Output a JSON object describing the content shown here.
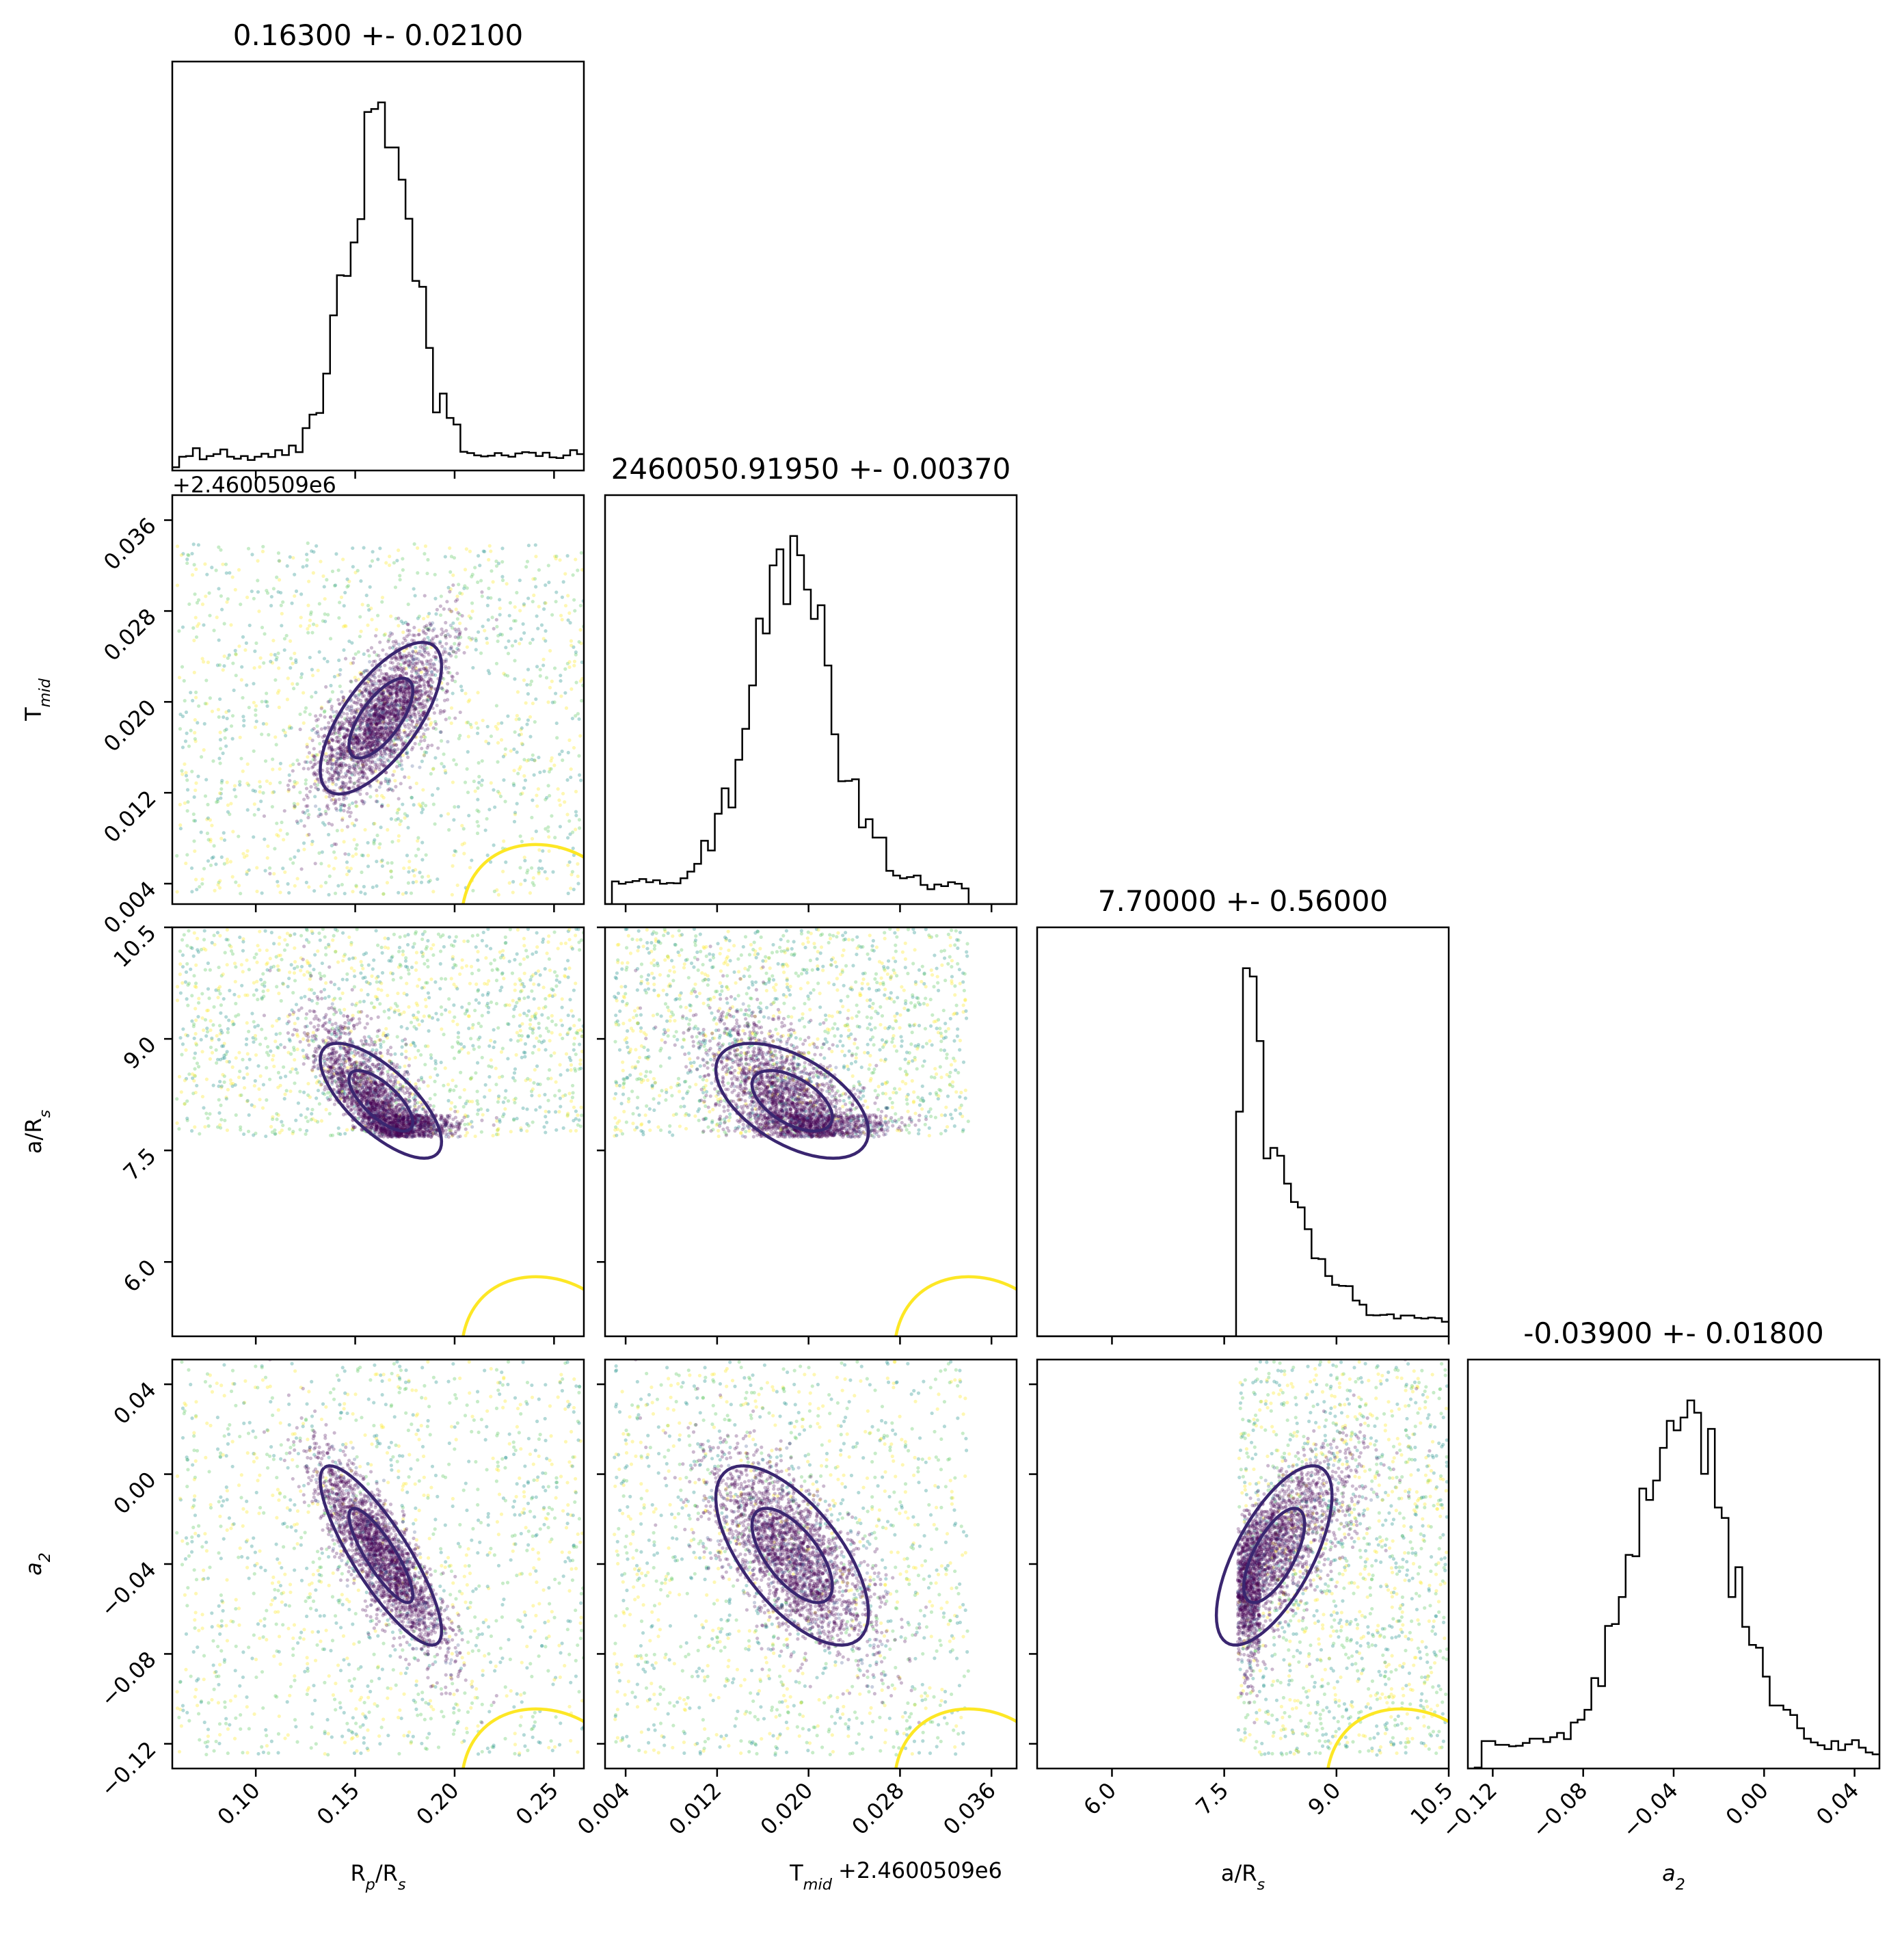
{
  "chart_data": {
    "type": "scatter",
    "parameters": [
      {
        "key": "rp",
        "label_main": "R",
        "label_sub": "p",
        "label_mid": "/R",
        "label_sub2": "s",
        "range": [
          0.058,
          0.265
        ],
        "ticks": [
          0.1,
          0.15,
          0.2,
          0.25
        ],
        "tick_labels": [
          "0.10",
          "0.15",
          "0.20",
          "0.25"
        ]
      },
      {
        "key": "tmid",
        "label_main": "T",
        "label_sub": "mid",
        "label_mid": "",
        "label_sub2": "",
        "range": [
          0.0022,
          0.0382
        ],
        "ticks": [
          0.004,
          0.012,
          0.02,
          0.028,
          0.036
        ],
        "tick_labels": [
          "0.004",
          "0.012",
          "0.020",
          "0.028",
          "0.036"
        ],
        "offset_text": "+2.4600509e6"
      },
      {
        "key": "ars",
        "label_main": "a/R",
        "label_sub": "s",
        "label_mid": "",
        "label_sub2": "",
        "range": [
          5.0,
          10.5
        ],
        "ticks": [
          6.0,
          7.5,
          9.0,
          10.5
        ],
        "tick_labels": [
          "6.0",
          "7.5",
          "9.0",
          "10.5"
        ]
      },
      {
        "key": "a2",
        "label_main": "a",
        "label_sub": "2",
        "label_mid": "",
        "label_sub2": "",
        "italic": true,
        "range": [
          -0.131,
          0.051
        ],
        "ticks": [
          -0.12,
          -0.08,
          -0.04,
          0.0,
          0.04
        ],
        "tick_labels": [
          "−0.12",
          "−0.08",
          "−0.04",
          "0.00",
          "0.04"
        ]
      }
    ],
    "titles": [
      "0.16300 +- 0.02100",
      "2460050.91950 +- 0.00370",
      "7.70000 +- 0.56000",
      "-0.03900 +- 0.01800"
    ],
    "summary": [
      {
        "param": "rp",
        "median": 0.163,
        "sigma": 0.021
      },
      {
        "param": "tmid",
        "median": 2460050.9195,
        "sigma": 0.0037
      },
      {
        "param": "ars",
        "median": 7.7,
        "sigma": 0.56
      },
      {
        "param": "a2",
        "median": -0.039,
        "sigma": 0.018
      }
    ],
    "histograms": [
      {
        "param": "rp",
        "peak_x": 0.163,
        "peak_hw": 0.008
      },
      {
        "param": "tmid",
        "peak_x": 0.0186,
        "peak_hw": 0.0015
      },
      {
        "param": "ars",
        "peak_x": 7.85,
        "lower_cutoff": 7.65
      },
      {
        "param": "a2",
        "peak_x": -0.036,
        "peak_hw": 0.006
      }
    ],
    "scatter_colormap": [
      "#440154",
      "#3b528b",
      "#21918c",
      "#5ec962",
      "#fde725"
    ],
    "contour_colors": {
      "inner": "#3a2670",
      "outer": "#fde725"
    },
    "legend": "none",
    "grid": false
  }
}
